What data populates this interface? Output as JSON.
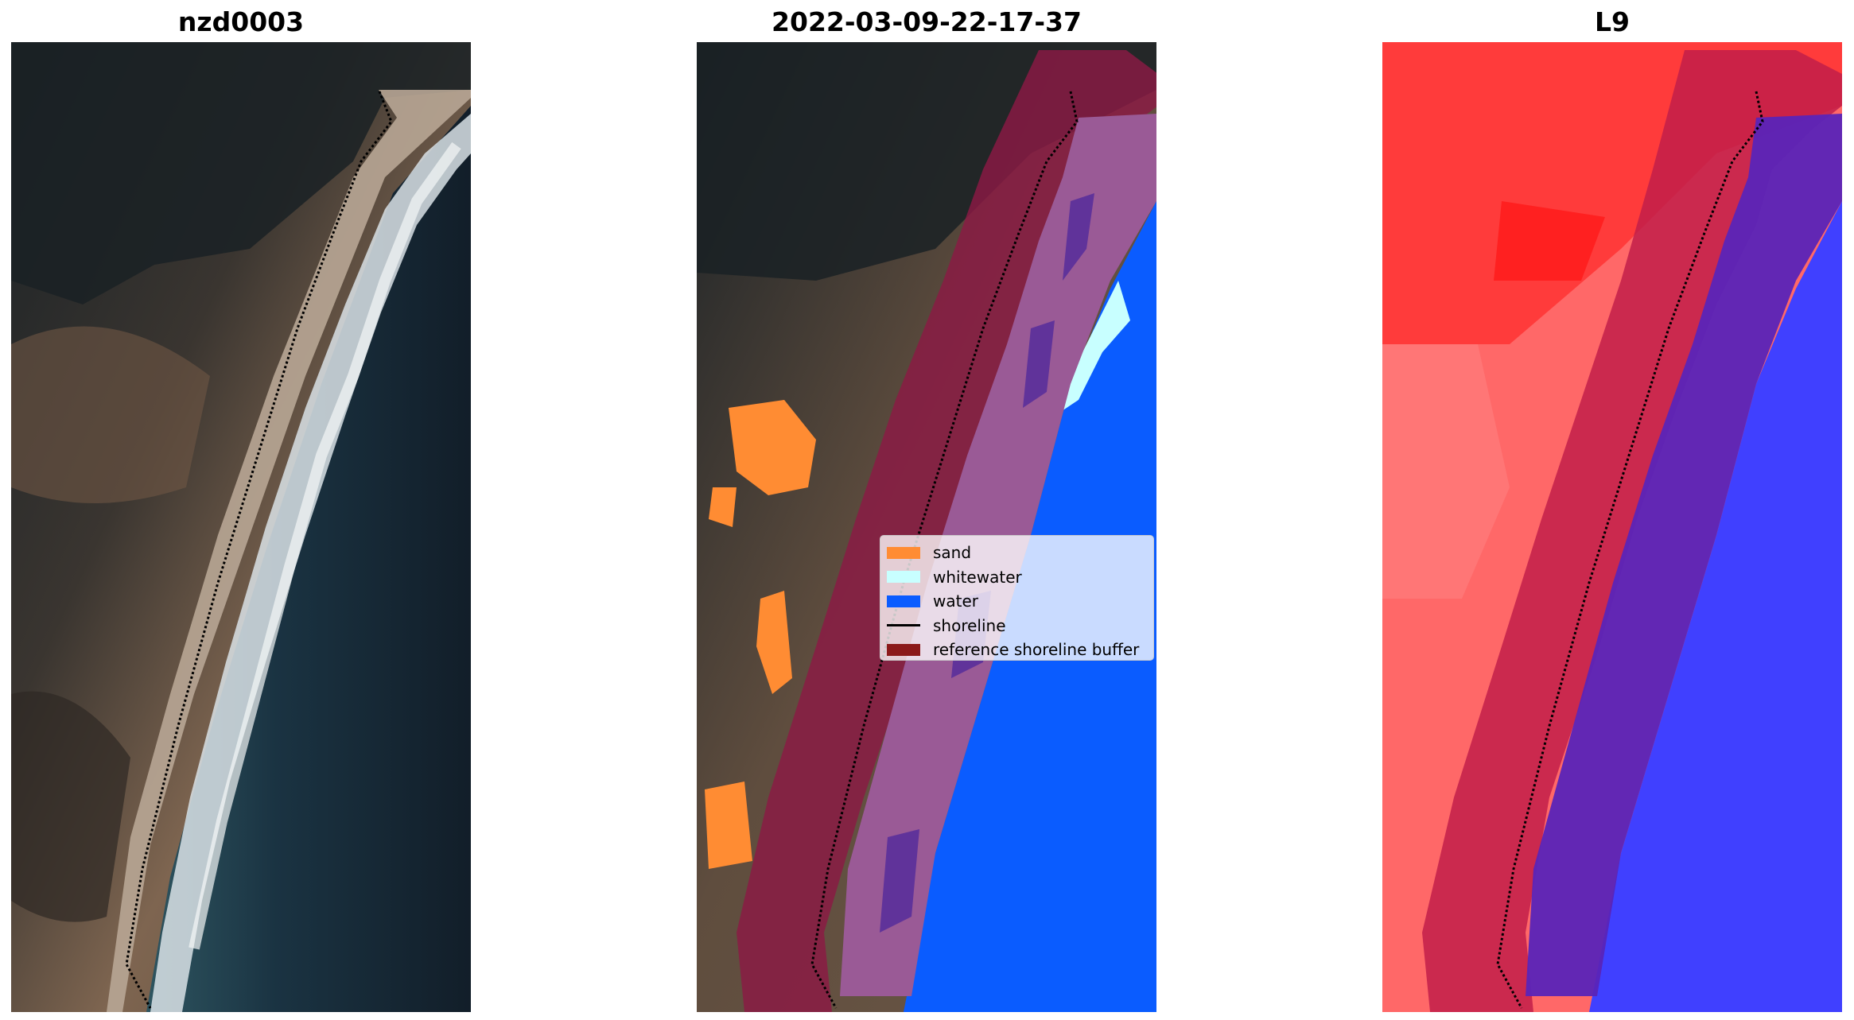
{
  "panels": [
    {
      "title": "nzd0003"
    },
    {
      "title": "2022-03-09-22-17-37"
    },
    {
      "title": "L9"
    }
  ],
  "legend": {
    "items": [
      {
        "label": "sand",
        "color": "#ff8c33",
        "kind": "patch"
      },
      {
        "label": "whitewater",
        "color": "#c8ffff",
        "kind": "patch"
      },
      {
        "label": "water",
        "color": "#0a5cff",
        "kind": "patch"
      },
      {
        "label": "shoreline",
        "color": "#000000",
        "kind": "line"
      },
      {
        "label": "reference shoreline buffer",
        "color": "#8b1a1a",
        "kind": "patch"
      }
    ]
  },
  "colors": {
    "land_dark": "#1c2226",
    "land_brown": "#8a6f57",
    "sea_dark": "#14222e",
    "surf": "#dfe6ea",
    "class_bg_buffer": "#8b1a44",
    "classified_sand_overlay": "#9a5a96",
    "index_land": "#ff3b3b",
    "index_water": "#3b3bff"
  }
}
